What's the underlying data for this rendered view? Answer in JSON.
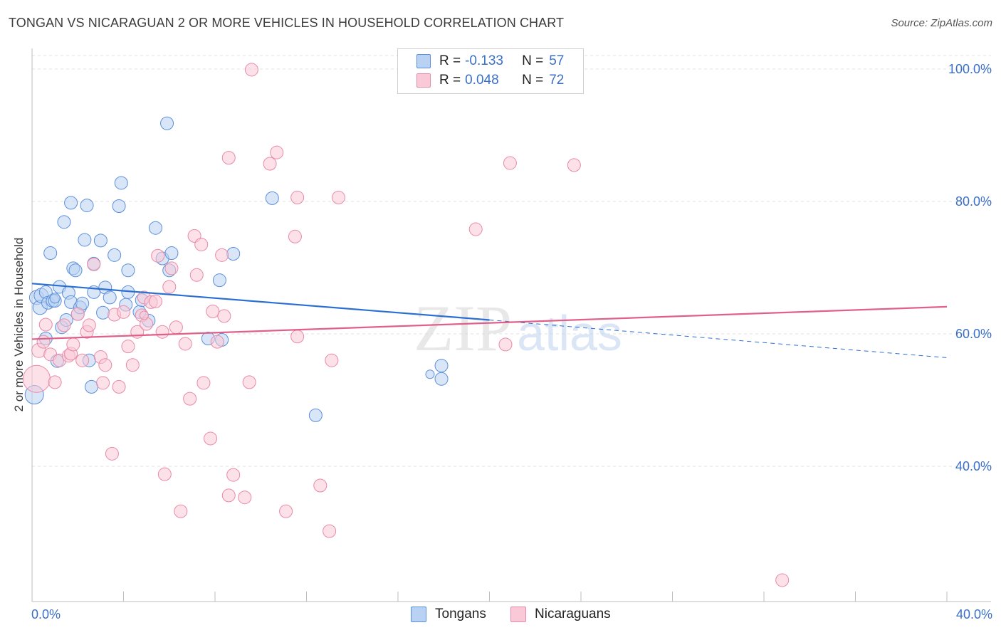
{
  "title": "TONGAN VS NICARAGUAN 2 OR MORE VEHICLES IN HOUSEHOLD CORRELATION CHART",
  "source": "Source: ZipAtlas.com",
  "watermark": {
    "zip": "ZIP",
    "atlas": "atlas"
  },
  "legend": {
    "rows": [
      {
        "r_label": "R =",
        "r_value": "-0.133",
        "n_label": "N =",
        "n_value": "57",
        "fill": "#b9d2f3",
        "stroke": "#5b8fdc"
      },
      {
        "r_label": "R =",
        "r_value": "0.048",
        "n_label": "N =",
        "n_value": "72",
        "fill": "#f9c9d7",
        "stroke": "#e98aa7"
      }
    ]
  },
  "bottom_legend": {
    "tongans": "Tongans",
    "nicaraguans": "Nicaraguans"
  },
  "chart_data": {
    "type": "scatter",
    "title": "TONGAN VS NICARAGUAN 2 OR MORE VEHICLES IN HOUSEHOLD CORRELATION CHART",
    "xlabel": "",
    "ylabel": "2 or more Vehicles in Household",
    "xlim": [
      0,
      40
    ],
    "ylim": [
      20,
      102
    ],
    "x_tick_labels": {
      "left": "0.0%",
      "right": "40.0%"
    },
    "y_ticks": [
      {
        "value": 40,
        "label": "40.0%"
      },
      {
        "value": 60,
        "label": "60.0%"
      },
      {
        "value": 80,
        "label": "80.0%"
      },
      {
        "value": 100,
        "label": "100.0%"
      }
    ],
    "grid": true,
    "legend_position": "top-center",
    "series": [
      {
        "name": "Tongans",
        "color_fill": "#b9d2f3",
        "color_stroke": "#5b8fdc",
        "trend_color": "#2b6fd1",
        "trend": {
          "x_start": 0,
          "y_start": 67.6,
          "x_solid_end": 20,
          "y_solid_end": 62.1,
          "x_end": 40,
          "y_end": 56.4
        },
        "points": [
          [
            0.1,
            50.8,
            26
          ],
          [
            0.2,
            65.5,
            20
          ],
          [
            0.35,
            64.0,
            20
          ],
          [
            0.4,
            65.8,
            20
          ],
          [
            0.6,
            66.3,
            18
          ],
          [
            0.6,
            59.3,
            18
          ],
          [
            0.7,
            64.7,
            18
          ],
          [
            0.8,
            72.2,
            18
          ],
          [
            0.9,
            65.0,
            18
          ],
          [
            1.0,
            65.0,
            18
          ],
          [
            1.1,
            55.9,
            18
          ],
          [
            1.2,
            67.1,
            18
          ],
          [
            1.3,
            61.0,
            18
          ],
          [
            1.4,
            76.9,
            18
          ],
          [
            1.5,
            62.1,
            18
          ],
          [
            1.6,
            66.2,
            18
          ],
          [
            1.7,
            64.8,
            18
          ],
          [
            1.7,
            79.8,
            18
          ],
          [
            1.8,
            69.9,
            18
          ],
          [
            1.9,
            69.6,
            18
          ],
          [
            2.0,
            63.0,
            18
          ],
          [
            2.1,
            64.0,
            18
          ],
          [
            2.2,
            64.6,
            18
          ],
          [
            2.3,
            74.2,
            18
          ],
          [
            2.4,
            79.4,
            18
          ],
          [
            2.5,
            56.0,
            18
          ],
          [
            2.6,
            52.0,
            18
          ],
          [
            2.7,
            66.3,
            18
          ],
          [
            2.7,
            70.6,
            18
          ],
          [
            3.0,
            74.1,
            18
          ],
          [
            3.1,
            63.2,
            18
          ],
          [
            3.2,
            67.0,
            18
          ],
          [
            3.4,
            65.5,
            18
          ],
          [
            3.6,
            71.9,
            18
          ],
          [
            3.8,
            79.3,
            18
          ],
          [
            3.9,
            82.8,
            18
          ],
          [
            4.1,
            64.4,
            18
          ],
          [
            4.2,
            66.3,
            18
          ],
          [
            4.2,
            69.6,
            18
          ],
          [
            4.7,
            63.3,
            18
          ],
          [
            4.8,
            65.1,
            18
          ],
          [
            5.1,
            62.0,
            18
          ],
          [
            5.4,
            76.0,
            18
          ],
          [
            5.7,
            71.4,
            18
          ],
          [
            5.9,
            91.8,
            18
          ],
          [
            6.0,
            69.6,
            18
          ],
          [
            6.1,
            72.2,
            18
          ],
          [
            7.7,
            59.3,
            18
          ],
          [
            8.2,
            68.1,
            18
          ],
          [
            8.3,
            59.1,
            18
          ],
          [
            8.8,
            72.1,
            18
          ],
          [
            10.5,
            80.5,
            18
          ],
          [
            12.4,
            47.7,
            18
          ],
          [
            17.9,
            53.2,
            18
          ],
          [
            17.4,
            53.9,
            12
          ],
          [
            17.9,
            55.2,
            18
          ],
          [
            1.0,
            65.4,
            14
          ]
        ]
      },
      {
        "name": "Nicaraguans",
        "color_fill": "#f9c9d7",
        "color_stroke": "#e98aa7",
        "trend_color": "#e0608a",
        "trend": {
          "x_start": 0,
          "y_start": 59.2,
          "x_end": 40,
          "y_end": 64.1
        },
        "points": [
          [
            0.2,
            53.2,
            38
          ],
          [
            0.3,
            57.5,
            20
          ],
          [
            0.5,
            58.8,
            18
          ],
          [
            0.6,
            61.4,
            18
          ],
          [
            0.8,
            56.9,
            18
          ],
          [
            1.0,
            52.7,
            18
          ],
          [
            1.2,
            56.0,
            18
          ],
          [
            1.4,
            61.3,
            18
          ],
          [
            1.6,
            56.7,
            18
          ],
          [
            1.7,
            57.0,
            18
          ],
          [
            1.8,
            58.4,
            18
          ],
          [
            2.0,
            63.0,
            18
          ],
          [
            2.2,
            56.0,
            18
          ],
          [
            2.4,
            60.3,
            18
          ],
          [
            2.5,
            61.3,
            18
          ],
          [
            2.7,
            70.5,
            18
          ],
          [
            3.0,
            56.5,
            18
          ],
          [
            3.1,
            52.6,
            18
          ],
          [
            3.2,
            55.3,
            18
          ],
          [
            3.5,
            41.9,
            18
          ],
          [
            3.6,
            62.9,
            18
          ],
          [
            3.8,
            52.0,
            18
          ],
          [
            4.0,
            63.3,
            18
          ],
          [
            4.2,
            58.1,
            18
          ],
          [
            4.4,
            55.3,
            18
          ],
          [
            4.6,
            60.3,
            18
          ],
          [
            4.8,
            62.8,
            18
          ],
          [
            4.9,
            65.5,
            18
          ],
          [
            5.0,
            61.5,
            18
          ],
          [
            5.2,
            64.8,
            18
          ],
          [
            5.4,
            64.9,
            18
          ],
          [
            5.5,
            71.8,
            18
          ],
          [
            5.7,
            60.3,
            18
          ],
          [
            5.8,
            38.8,
            18
          ],
          [
            6.0,
            67.1,
            18
          ],
          [
            6.1,
            69.9,
            18
          ],
          [
            6.3,
            61.0,
            18
          ],
          [
            6.5,
            33.2,
            18
          ],
          [
            6.7,
            58.5,
            18
          ],
          [
            6.9,
            50.2,
            18
          ],
          [
            7.1,
            74.8,
            18
          ],
          [
            7.2,
            68.9,
            18
          ],
          [
            7.4,
            73.5,
            18
          ],
          [
            7.5,
            52.6,
            18
          ],
          [
            7.8,
            44.2,
            18
          ],
          [
            7.9,
            63.4,
            18
          ],
          [
            8.1,
            58.8,
            18
          ],
          [
            8.3,
            71.9,
            18
          ],
          [
            8.4,
            62.7,
            18
          ],
          [
            8.6,
            86.6,
            18
          ],
          [
            8.6,
            35.6,
            18
          ],
          [
            8.8,
            38.7,
            18
          ],
          [
            9.3,
            35.3,
            18
          ],
          [
            9.5,
            52.7,
            18
          ],
          [
            9.6,
            99.9,
            18
          ],
          [
            10.4,
            85.7,
            18
          ],
          [
            10.7,
            87.4,
            18
          ],
          [
            11.1,
            33.2,
            18
          ],
          [
            11.5,
            74.7,
            18
          ],
          [
            11.6,
            59.6,
            18
          ],
          [
            11.6,
            80.6,
            18
          ],
          [
            12.6,
            37.1,
            18
          ],
          [
            13.0,
            30.2,
            18
          ],
          [
            13.1,
            56.0,
            18
          ],
          [
            13.4,
            80.6,
            18
          ],
          [
            19.4,
            75.8,
            18
          ],
          [
            20.7,
            58.4,
            18
          ],
          [
            20.9,
            85.8,
            18
          ],
          [
            23.7,
            85.5,
            18
          ],
          [
            32.8,
            22.8,
            18
          ],
          [
            6.0,
            33.0,
            0
          ],
          [
            4.9,
            62.8,
            12
          ]
        ]
      }
    ]
  }
}
